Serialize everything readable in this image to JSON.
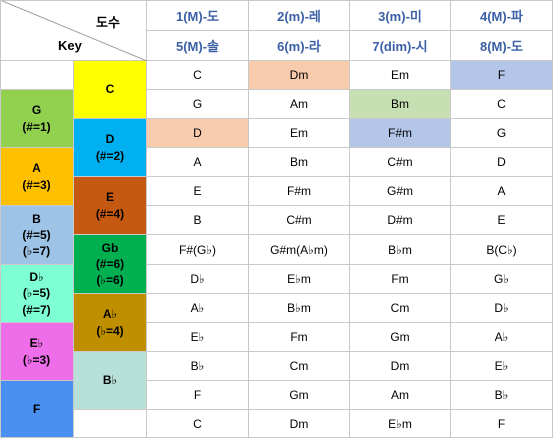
{
  "corner": {
    "top_label": "도수",
    "left_label": "Key"
  },
  "header_row1": [
    "1(M)-도",
    "2(m)-레",
    "3(m)-미",
    "4(M)-파"
  ],
  "header_row2": [
    "5(M)-솔",
    "6(m)-라",
    "7(dim)-시",
    "8(M)-도"
  ],
  "col1_keys": [
    {
      "label": "G\n(#=1)",
      "color": "#92d050"
    },
    {
      "label": "A\n(#=3)",
      "color": "#ffc000"
    },
    {
      "label": "B\n(#=5)\n(♭=7)",
      "color": "#9dc3e6"
    },
    {
      "label": "D♭\n(♭=5)\n(#=7)",
      "color": "#7fffd4"
    },
    {
      "label": "E♭\n(♭=3)",
      "color": "#ee6de8"
    },
    {
      "label": "F",
      "color": "#4a90f0"
    }
  ],
  "col2_keys": [
    {
      "label": "C",
      "color": "#ffff00"
    },
    {
      "label": "D\n(#=2)",
      "color": "#00b0f0"
    },
    {
      "label": "E\n(#=4)",
      "color": "#c65911"
    },
    {
      "label": "Gb\n(#=6)\n(♭=6)",
      "color": "#00b050"
    },
    {
      "label": "A♭\n(♭=4)",
      "color": "#bf8f00"
    },
    {
      "label": "B♭",
      "color": "#b7e0d8"
    }
  ],
  "chords": [
    [
      "C",
      "Dm",
      "Em",
      "F"
    ],
    [
      "G",
      "Am",
      "Bm",
      "C"
    ],
    [
      "D",
      "Em",
      "F#m",
      "G"
    ],
    [
      "A",
      "Bm",
      "C#m",
      "D"
    ],
    [
      "E",
      "F#m",
      "G#m",
      "A"
    ],
    [
      "B",
      "C#m",
      "D#m",
      "E"
    ],
    [
      "F#(G♭)",
      "G#m(A♭m)",
      "B♭m",
      "B(C♭)"
    ],
    [
      "D♭",
      "E♭m",
      "Fm",
      "G♭"
    ],
    [
      "A♭",
      "B♭m",
      "Cm",
      "D♭"
    ],
    [
      "E♭",
      "Fm",
      "Gm",
      "A♭"
    ],
    [
      "B♭",
      "Cm",
      "Dm",
      "E♭"
    ],
    [
      "F",
      "Gm",
      "Am",
      "B♭"
    ],
    [
      "C",
      "Dm",
      "E♭m",
      "F"
    ]
  ],
  "highlights": [
    {
      "row": 0,
      "col": 1,
      "color": "#f8cbad"
    },
    {
      "row": 0,
      "col": 3,
      "color": "#b4c6e7"
    },
    {
      "row": 1,
      "col": 2,
      "color": "#c6e0b4"
    },
    {
      "row": 2,
      "col": 0,
      "color": "#f8cbad"
    },
    {
      "row": 2,
      "col": 2,
      "color": "#b4c6e7"
    }
  ],
  "colors": {
    "header_text": "#3a5fa5",
    "grid": "#c9c9c9"
  }
}
